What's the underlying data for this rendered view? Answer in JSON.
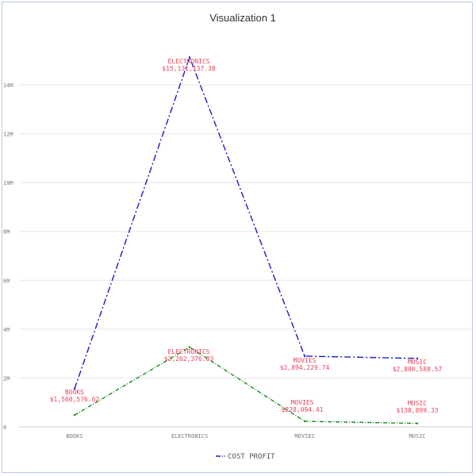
{
  "chart_data": {
    "type": "line",
    "title": "Visualization 1",
    "categories": [
      "BOOKS",
      "ELECTRONICS",
      "MOVIES",
      "MUSIC"
    ],
    "ylim": [
      0,
      16000000
    ],
    "yticks": [
      {
        "value": 0,
        "label": "0"
      },
      {
        "value": 2000000,
        "label": "2M"
      },
      {
        "value": 4000000,
        "label": "4M"
      },
      {
        "value": 6000000,
        "label": "6M"
      },
      {
        "value": 8000000,
        "label": "8M"
      },
      {
        "value": 10000000,
        "label": "10M"
      },
      {
        "value": 12000000,
        "label": "12M"
      },
      {
        "value": 14000000,
        "label": "14M"
      }
    ],
    "grid": true,
    "legend_position": "bottom",
    "legend_label": "COST PROFIT",
    "series": [
      {
        "name": "COST",
        "color": "#1a1acc",
        "values": [
          1560576.62,
          15131137.38,
          2894229.74,
          2800588.57
        ],
        "labels": [
          {
            "line1": "BOOKS",
            "line2": "$1,560,576.62"
          },
          {
            "line1": "ELECTRONICS",
            "line2": "$15,131,137.38"
          },
          {
            "line1": "MOVIES",
            "line2": "$2,894,229.74"
          },
          {
            "line1": "MUSIC",
            "line2": "$2,800,588.57"
          }
        ]
      },
      {
        "name": "PROFIT",
        "color": "#1a8a1a",
        "values": [
          480000,
          3262376.83,
          228094.41,
          138899.33
        ],
        "labels": [
          null,
          {
            "line1": "ELECTRONICS",
            "line2": "$3,262,376.83"
          },
          {
            "line1": "MOVIES",
            "line2": "$228,094.41"
          },
          {
            "line1": "MUSIC",
            "line2": "$138,899.33"
          }
        ]
      }
    ]
  }
}
